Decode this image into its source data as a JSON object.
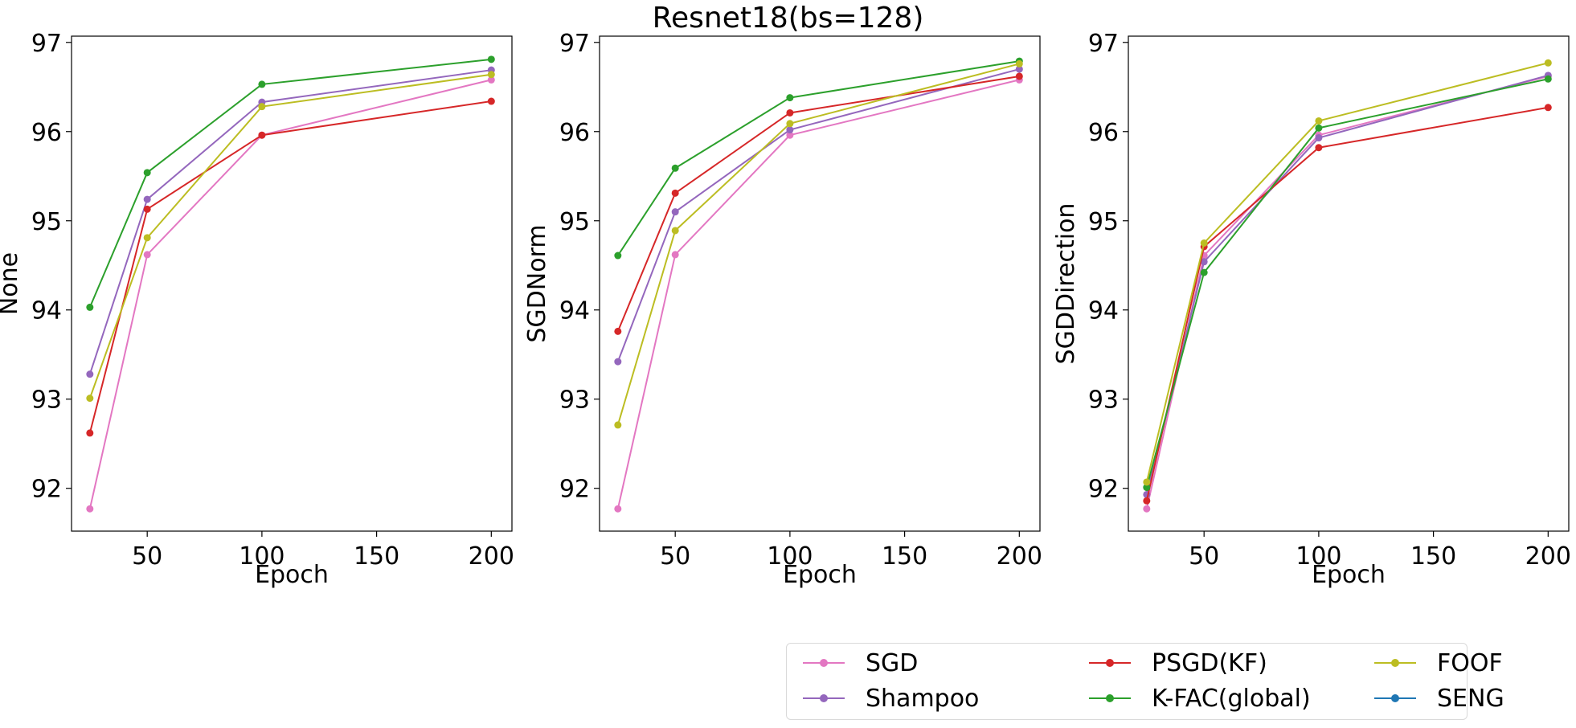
{
  "suptitle": "Resnet18(bs=128)",
  "chart_data": [
    {
      "type": "line",
      "title": "",
      "xlabel": "Epoch",
      "ylabel": "None",
      "x": [
        25,
        50,
        100,
        200
      ],
      "xticks": [
        50,
        100,
        150,
        200
      ],
      "yticks": [
        92,
        93,
        94,
        95,
        96,
        97
      ],
      "xlim": [
        17,
        209
      ],
      "ylim": [
        91.52,
        97.07
      ],
      "grid": false,
      "series": [
        {
          "name": "SGD",
          "color": "#e377c2",
          "values": [
            91.77,
            94.62,
            95.96,
            96.58
          ]
        },
        {
          "name": "Shampoo",
          "color": "#9467bd",
          "values": [
            93.28,
            95.24,
            96.33,
            96.69
          ]
        },
        {
          "name": "PSGD(KF)",
          "color": "#d62728",
          "values": [
            92.62,
            95.13,
            95.96,
            96.34
          ]
        },
        {
          "name": "K-FAC(global)",
          "color": "#2ca02c",
          "values": [
            94.03,
            95.54,
            96.53,
            96.81
          ]
        },
        {
          "name": "FOOF",
          "color": "#bcbd22",
          "values": [
            93.01,
            94.81,
            96.28,
            96.64
          ]
        }
      ]
    },
    {
      "type": "line",
      "title": "",
      "xlabel": "Epoch",
      "ylabel": "SGDNorm",
      "x": [
        25,
        50,
        100,
        200
      ],
      "xticks": [
        50,
        100,
        150,
        200
      ],
      "yticks": [
        92,
        93,
        94,
        95,
        96,
        97
      ],
      "xlim": [
        17,
        209
      ],
      "ylim": [
        91.52,
        97.07
      ],
      "grid": false,
      "series": [
        {
          "name": "SGD",
          "color": "#e377c2",
          "values": [
            91.77,
            94.62,
            95.96,
            96.58
          ]
        },
        {
          "name": "Shampoo",
          "color": "#9467bd",
          "values": [
            93.42,
            95.1,
            96.02,
            96.7
          ]
        },
        {
          "name": "PSGD(KF)",
          "color": "#d62728",
          "values": [
            93.76,
            95.31,
            96.21,
            96.62
          ]
        },
        {
          "name": "K-FAC(global)",
          "color": "#2ca02c",
          "values": [
            94.61,
            95.59,
            96.38,
            96.79
          ]
        },
        {
          "name": "FOOF",
          "color": "#bcbd22",
          "values": [
            92.71,
            94.89,
            96.09,
            96.76
          ]
        }
      ]
    },
    {
      "type": "line",
      "title": "",
      "xlabel": "Epoch",
      "ylabel": "SGDDirection",
      "x": [
        25,
        50,
        100,
        200
      ],
      "xticks": [
        50,
        100,
        150,
        200
      ],
      "yticks": [
        92,
        93,
        94,
        95,
        96,
        97
      ],
      "xlim": [
        17,
        209
      ],
      "ylim": [
        91.52,
        97.07
      ],
      "grid": false,
      "series": [
        {
          "name": "SGD",
          "color": "#e377c2",
          "values": [
            91.77,
            94.61,
            95.96,
            96.62
          ]
        },
        {
          "name": "Shampoo",
          "color": "#9467bd",
          "values": [
            91.93,
            94.54,
            95.93,
            96.63
          ]
        },
        {
          "name": "PSGD(KF)",
          "color": "#d62728",
          "values": [
            91.86,
            94.71,
            95.82,
            96.27
          ]
        },
        {
          "name": "K-FAC(global)",
          "color": "#2ca02c",
          "values": [
            92.01,
            94.42,
            96.04,
            96.59
          ]
        },
        {
          "name": "FOOF",
          "color": "#bcbd22",
          "values": [
            92.07,
            94.75,
            96.12,
            96.77
          ]
        }
      ]
    }
  ],
  "legend": {
    "placement": "bottom-right",
    "columns": 3,
    "items": [
      {
        "name": "SGD",
        "color": "#e377c2"
      },
      {
        "name": "Shampoo",
        "color": "#9467bd"
      },
      {
        "name": "PSGD(KF)",
        "color": "#d62728"
      },
      {
        "name": "K-FAC(global)",
        "color": "#2ca02c"
      },
      {
        "name": "FOOF",
        "color": "#bcbd22"
      },
      {
        "name": "SENG",
        "color": "#1f77b4"
      }
    ]
  }
}
